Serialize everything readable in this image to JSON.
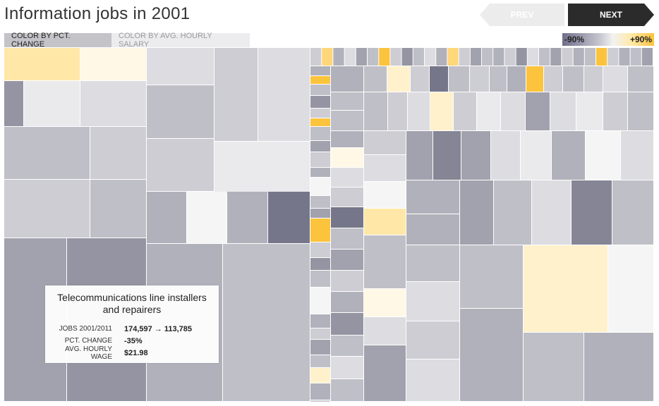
{
  "header": {
    "title": "Information jobs in 2001",
    "prev_label": "PREV",
    "next_label": "NEXT"
  },
  "color_tabs": [
    {
      "label": "COLOR BY PCT. CHANGE",
      "active": true
    },
    {
      "label": "COLOR BY AVG. HOURLY SALARY",
      "active": false
    }
  ],
  "legend": {
    "min_label": "-90%",
    "max_label": "+90%",
    "colors": {
      "min": "#6e6e8a",
      "mid": "#f2f2f2",
      "max": "#fcc33d"
    }
  },
  "tooltip": {
    "title": "Telecommunications line installers and repairers",
    "rows": [
      {
        "label": "JOBS 2001/2011",
        "value": "174,597 → 113,785"
      },
      {
        "label": "PCT. CHANGE",
        "value": "-35%"
      },
      {
        "label": "AVG. HOURLY WAGE",
        "value": "$21.98"
      }
    ]
  },
  "chart_data": {
    "type": "treemap",
    "title": "Information jobs in 2001",
    "size_by": "Jobs (2001)",
    "color_by": "Pct. change 2001–2011",
    "color_scale": {
      "min": -90,
      "max": 90,
      "min_color": "#6e6e8a",
      "mid_color": "#f2f2f2",
      "max_color": "#fcc33d"
    },
    "highlighted": {
      "name": "Telecommunications line installers and repairers",
      "jobs_2001": 174597,
      "jobs_2011": 113785,
      "pct_change": -35,
      "avg_hourly_wage": 21.98
    }
  }
}
